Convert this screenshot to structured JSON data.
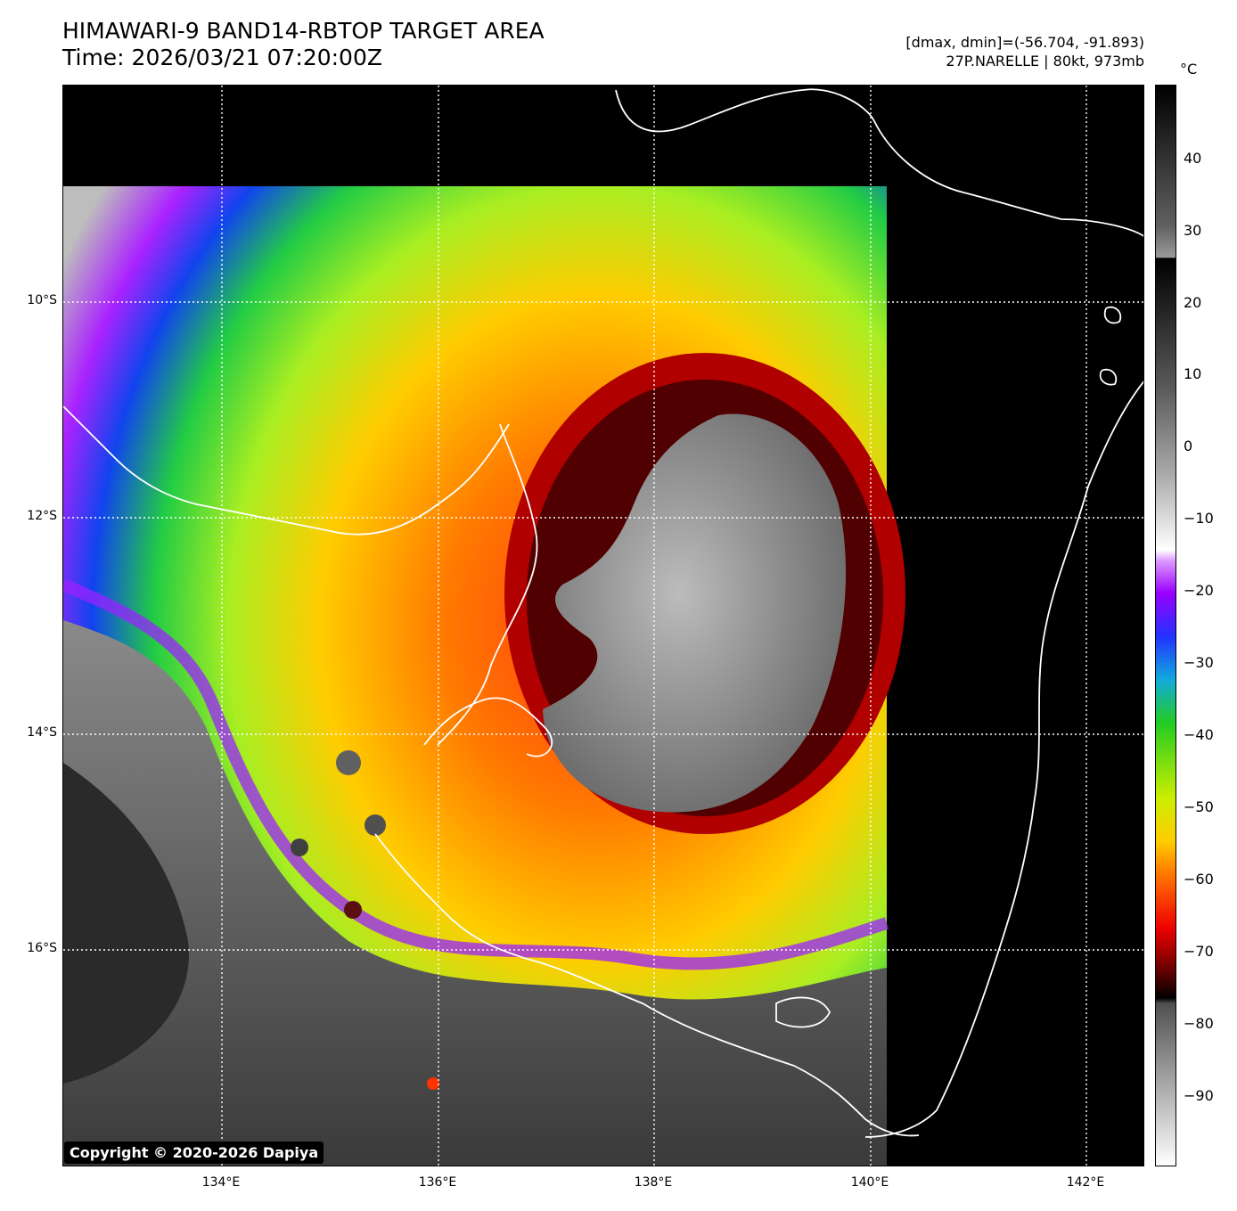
{
  "header": {
    "title": "HIMAWARI-9 BAND14-RBTOP TARGET AREA",
    "time": "Time: 2026/03/21 07:20:00Z",
    "range": "[dmax, dmin]=(-56.704, -91.893)",
    "storm": "27P.NARELLE | 80kt, 973mb"
  },
  "axes": {
    "lat_labels": [
      "10°S",
      "12°S",
      "14°S",
      "16°S"
    ],
    "lon_labels": [
      "134°E",
      "136°E",
      "138°E",
      "140°E",
      "142°E"
    ]
  },
  "colorbar": {
    "unit": "°C",
    "ticks": [
      "40",
      "30",
      "20",
      "10",
      "0",
      "−10",
      "−20",
      "−30",
      "−40",
      "−50",
      "−60",
      "−70",
      "−80",
      "−90"
    ]
  },
  "copyright": "Copyright © 2020-2026 Dapiya",
  "colors": {
    "gridline": "#ffffff",
    "coastline": "#ffffff",
    "eye_gray": "#8c8c8c",
    "ring_red": "#d21010",
    "ring_orange": "#ff6a00",
    "green": "#33dd22",
    "blue": "#1133ee",
    "purple": "#aa00ff"
  }
}
